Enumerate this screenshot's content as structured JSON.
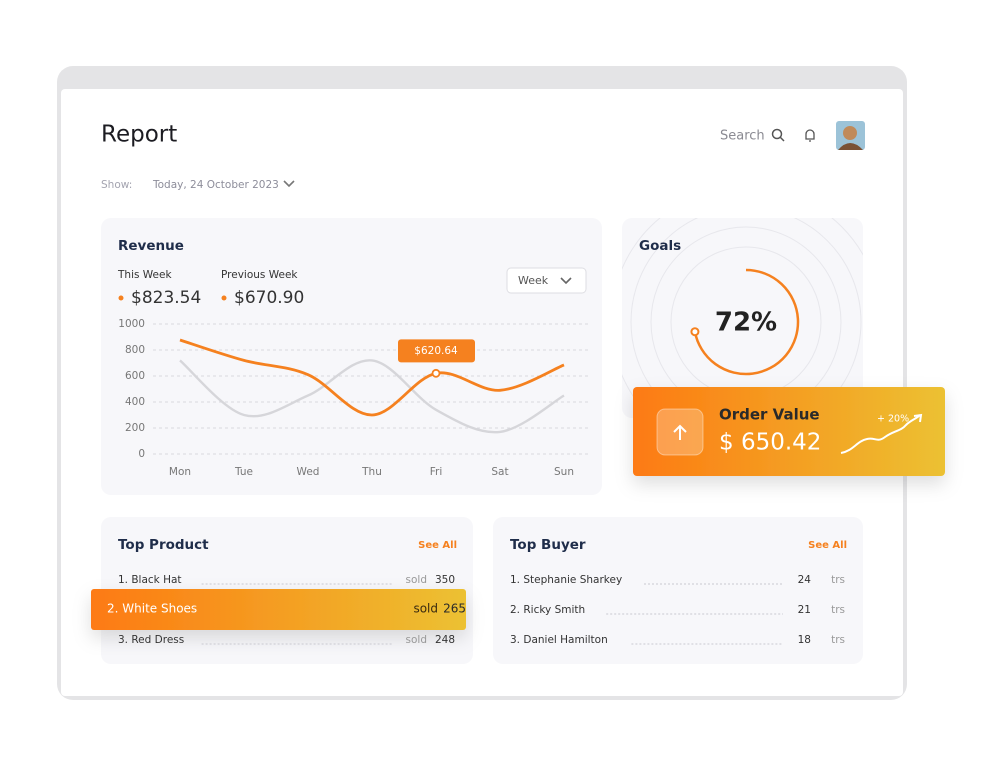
{
  "header": {
    "title": "Report",
    "search": "Search",
    "show_label": "Show:",
    "date": "Today, 24 October 2023"
  },
  "chart_data": {
    "type": "line",
    "title": "Revenue",
    "categories": [
      "Mon",
      "Tue",
      "Wed",
      "Thu",
      "Fri",
      "Sat",
      "Sun"
    ],
    "series": [
      {
        "name": "This Week",
        "total": "$823.54",
        "color": "#f5811f",
        "values": [
          877,
          720,
          610,
          300,
          620.64,
          490,
          685
        ]
      },
      {
        "name": "Previous Week",
        "total": "$670.90",
        "color": "#d6d6da",
        "values": [
          720,
          300,
          450,
          720,
          340,
          170,
          450
        ]
      }
    ],
    "ylim": [
      0,
      1000
    ],
    "yticks": [
      0,
      200,
      400,
      600,
      800,
      1000
    ],
    "grid": true,
    "period": "Week",
    "annotation": {
      "category": "Fri",
      "label": "$620.64"
    }
  },
  "goals": {
    "title": "Goals",
    "value": 72,
    "label": "72%"
  },
  "order_value": {
    "title": "Order Value",
    "amount": "$ 650.42",
    "change": "+ 20%"
  },
  "top_product": {
    "title": "Top Product",
    "link": "See All",
    "rows": [
      {
        "name": "1. Black Hat",
        "unit": "sold",
        "count": 350
      },
      {
        "name": "2. White Shoes",
        "unit": "sold",
        "count": 265
      },
      {
        "name": "3. Red Dress",
        "unit": "sold",
        "count": 248
      }
    ]
  },
  "top_buyer": {
    "title": "Top Buyer",
    "link": "See All",
    "rows": [
      {
        "name": "1. Stephanie Sharkey",
        "count": 24,
        "unit": "trs"
      },
      {
        "name": "2. Ricky Smith",
        "count": 21,
        "unit": "trs"
      },
      {
        "name": "3. Daniel Hamilton",
        "count": 18,
        "unit": "trs"
      }
    ]
  }
}
